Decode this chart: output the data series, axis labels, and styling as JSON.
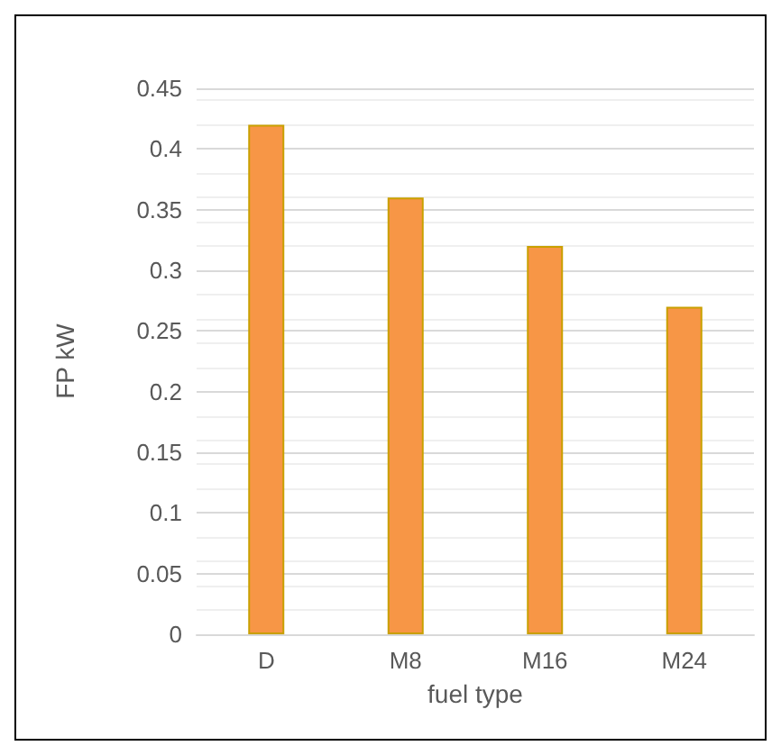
{
  "chart_data": {
    "type": "bar",
    "xlabel": "fuel type",
    "ylabel": "FP kW",
    "categories": [
      "D",
      "M8",
      "M16",
      "M24"
    ],
    "values": [
      0.42,
      0.36,
      0.32,
      0.27
    ],
    "color": "#f79646",
    "ylim": [
      0,
      0.45
    ],
    "yticks": [
      0,
      0.05,
      0.1,
      0.15,
      0.2,
      0.25,
      0.3,
      0.35,
      0.4,
      0.45
    ],
    "grid": "y"
  }
}
